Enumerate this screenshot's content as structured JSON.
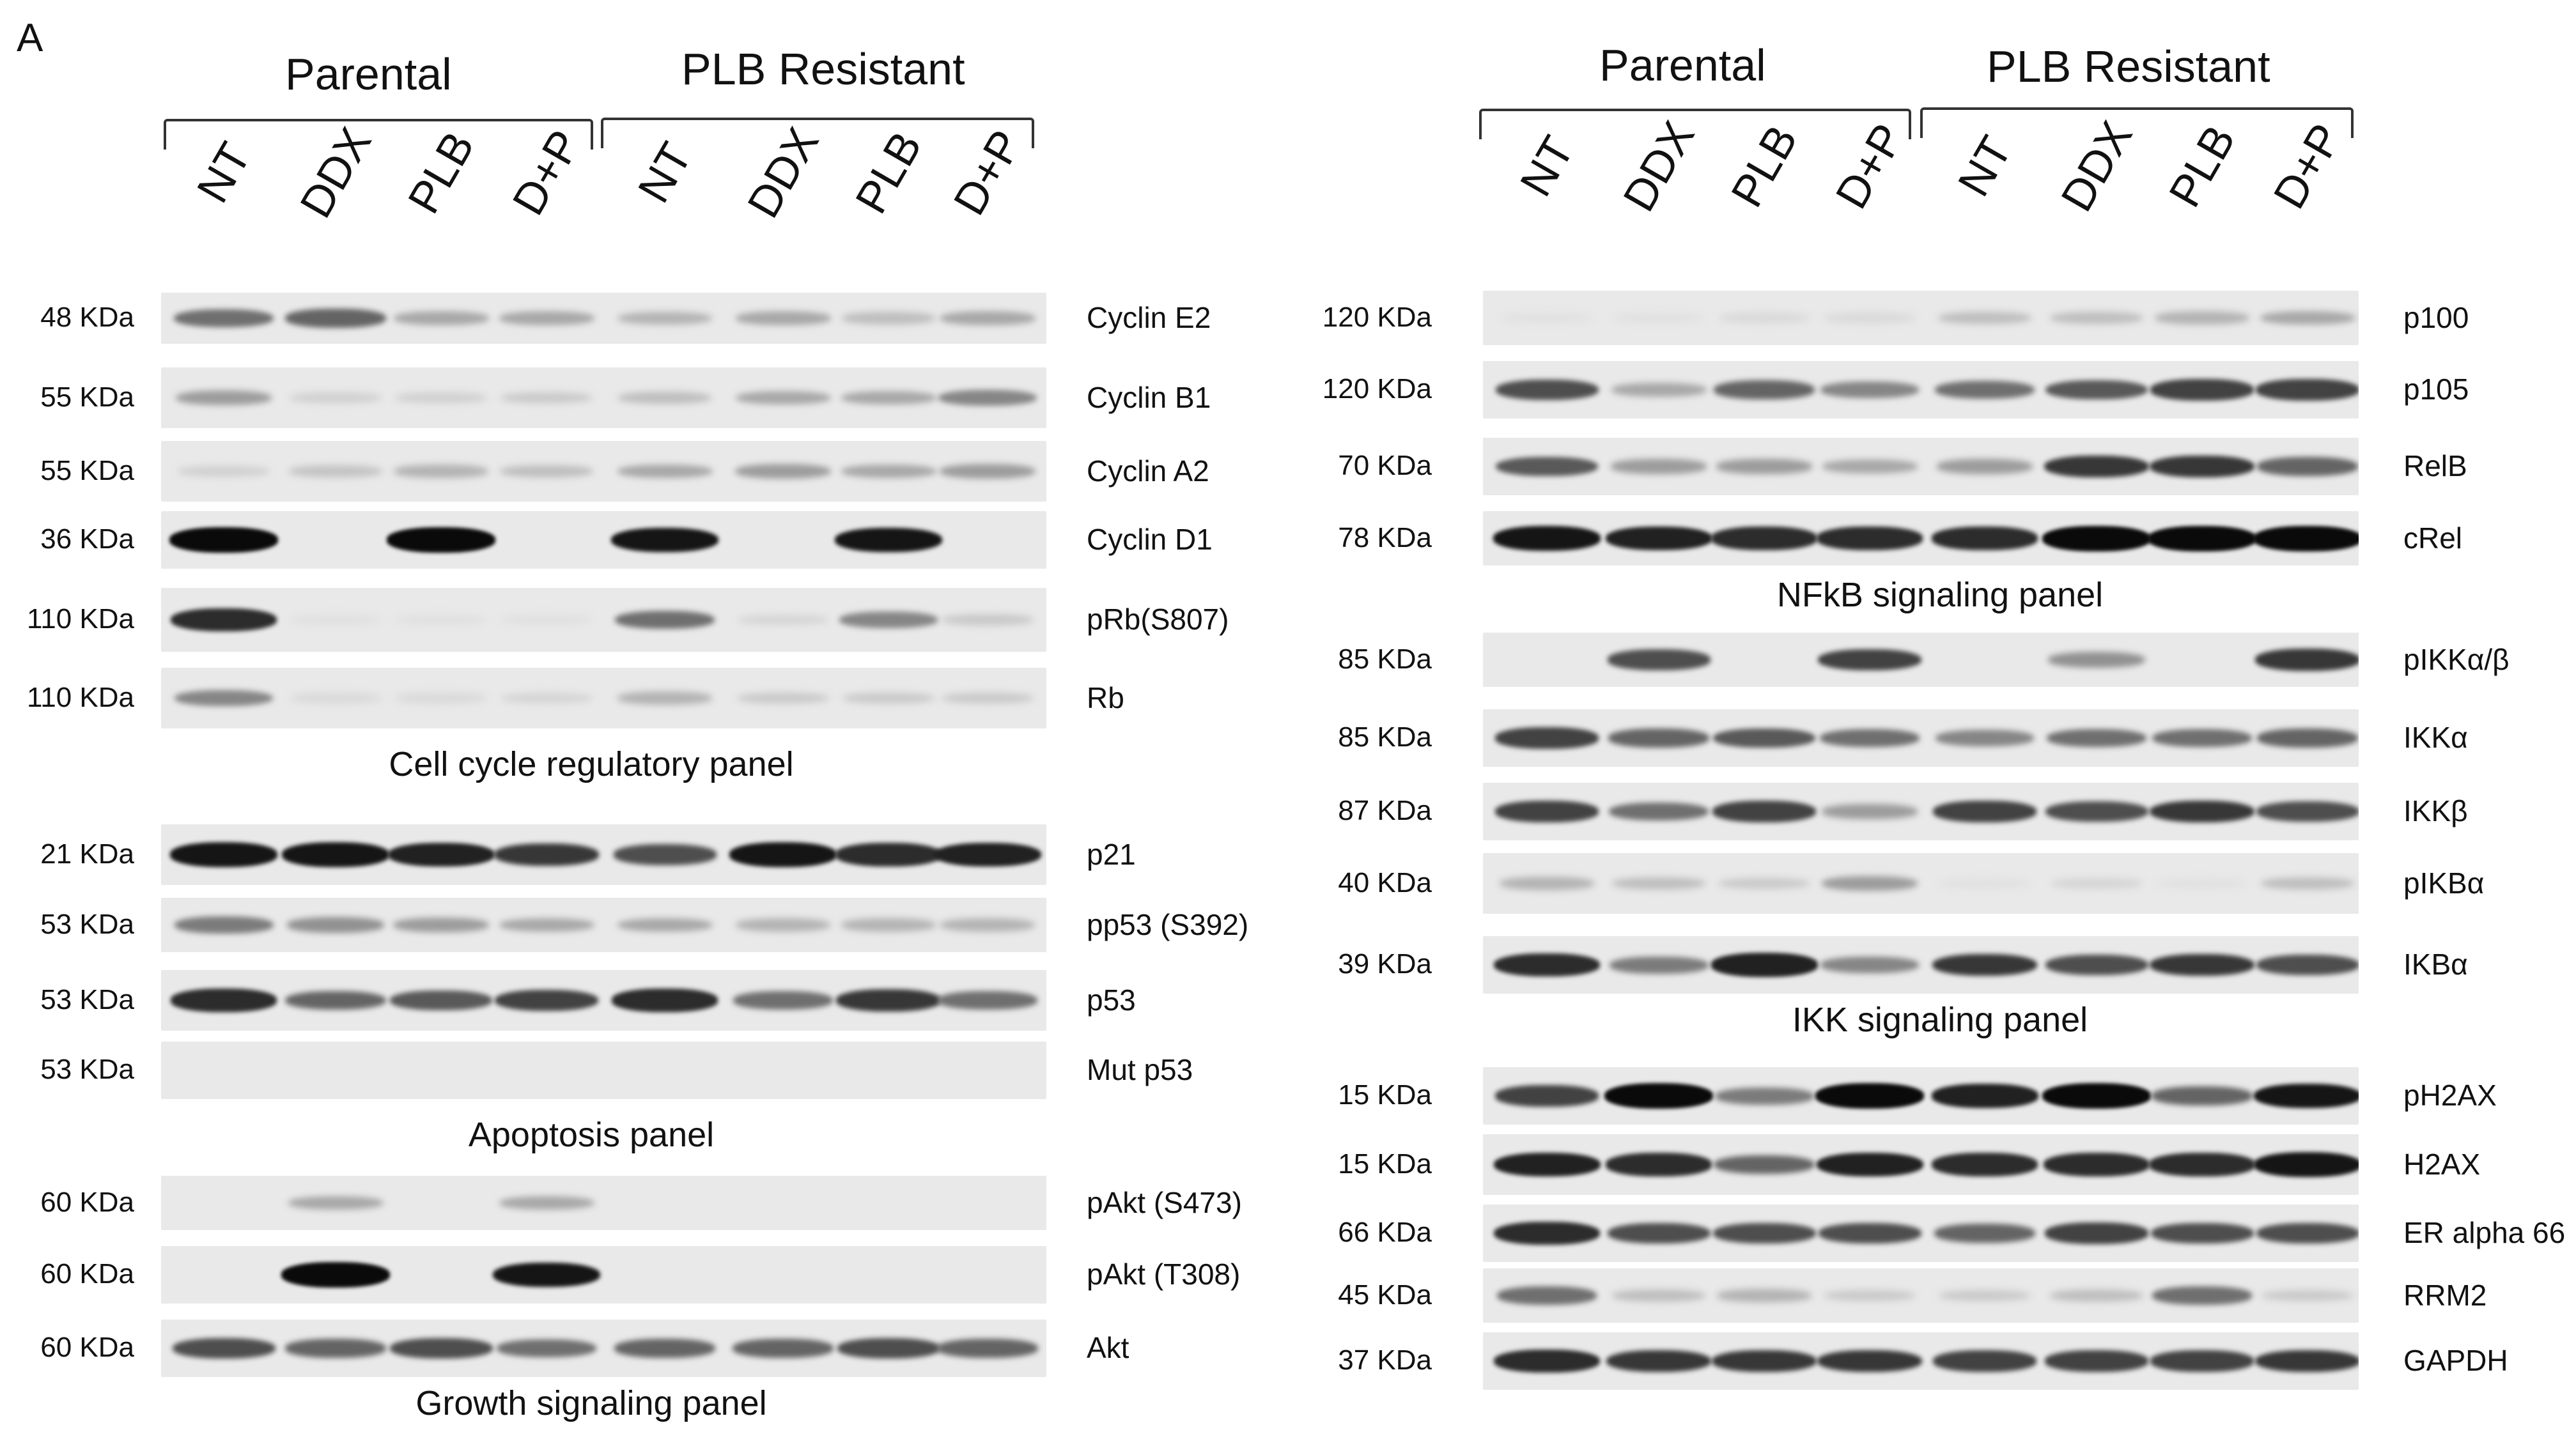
{
  "panel_letter": "A",
  "left": {
    "groups": [
      "Parental",
      "PLB Resistant"
    ],
    "lanes": [
      "NT",
      "DDX",
      "PLB",
      "D+P",
      "NT",
      "DDX",
      "PLB",
      "D+P"
    ],
    "panels": [
      {
        "title": "Cell cycle regulatory panel",
        "rows": [
          {
            "kda": "48 KDa",
            "protein": "Cyclin E2",
            "bands": [
              0.55,
              0.6,
              0.3,
              0.3,
              0.25,
              0.3,
              0.2,
              0.3
            ]
          },
          {
            "kda": "55 KDa",
            "protein": "Cyclin B1",
            "bands": [
              0.35,
              0.12,
              0.12,
              0.15,
              0.2,
              0.3,
              0.3,
              0.45
            ]
          },
          {
            "kda": "55 KDa",
            "protein": "Cyclin A2",
            "bands": [
              0.12,
              0.18,
              0.25,
              0.2,
              0.3,
              0.35,
              0.3,
              0.35
            ]
          },
          {
            "kda": "36 KDa",
            "protein": "Cyclin D1",
            "bands": [
              1,
              0,
              1,
              0,
              0.95,
              0,
              0.95,
              0
            ]
          },
          {
            "kda": "110 KDa",
            "protein": "pRb(S807)",
            "bands": [
              0.85,
              0.05,
              0.05,
              0.05,
              0.55,
              0.1,
              0.45,
              0.15
            ]
          },
          {
            "kda": "110 KDa",
            "protein": "Rb",
            "bands": [
              0.45,
              0.08,
              0.08,
              0.1,
              0.25,
              0.15,
              0.15,
              0.15
            ]
          }
        ]
      },
      {
        "title": "Apoptosis panel",
        "rows": [
          {
            "kda": "21 KDa",
            "protein": "p21",
            "bands": [
              0.95,
              0.95,
              0.9,
              0.8,
              0.7,
              0.95,
              0.85,
              0.9
            ]
          },
          {
            "kda": "53 KDa",
            "protein": "pp53 (S392)",
            "bands": [
              0.5,
              0.4,
              0.35,
              0.3,
              0.3,
              0.25,
              0.25,
              0.25
            ]
          },
          {
            "kda": "53 KDa",
            "protein": "p53",
            "bands": [
              0.85,
              0.6,
              0.65,
              0.75,
              0.85,
              0.55,
              0.8,
              0.55
            ]
          },
          {
            "kda": "53 KDa",
            "protein": "Mut p53",
            "bands": [
              0,
              0,
              0,
              0,
              0,
              0,
              0,
              0
            ]
          }
        ]
      },
      {
        "title": "Growth signaling panel",
        "rows": [
          {
            "kda": "60 KDa",
            "protein": "pAkt (S473)",
            "bands": [
              0,
              0.3,
              0,
              0.3,
              0,
              0,
              0,
              0
            ]
          },
          {
            "kda": "60 KDa",
            "protein": "pAkt (T308)",
            "bands": [
              0,
              1,
              0,
              0.95,
              0,
              0,
              0,
              0
            ]
          },
          {
            "kda": "60 KDa",
            "protein": "Akt",
            "bands": [
              0.7,
              0.6,
              0.7,
              0.55,
              0.6,
              0.6,
              0.7,
              0.6
            ]
          }
        ]
      }
    ]
  },
  "right": {
    "groups": [
      "Parental",
      "PLB Resistant"
    ],
    "lanes": [
      "NT",
      "DDX",
      "PLB",
      "D+P",
      "NT",
      "DDX",
      "PLB",
      "D+P"
    ],
    "panels": [
      {
        "title": "NFkB signaling panel",
        "rows": [
          {
            "kda": "120 KDa",
            "protein": "p100",
            "bands": [
              0.05,
              0.05,
              0.08,
              0.08,
              0.2,
              0.2,
              0.25,
              0.3
            ]
          },
          {
            "kda": "120 KDa",
            "protein": "p105",
            "bands": [
              0.7,
              0.3,
              0.6,
              0.45,
              0.55,
              0.65,
              0.75,
              0.75
            ]
          },
          {
            "kda": "70 KDa",
            "protein": "RelB",
            "bands": [
              0.65,
              0.35,
              0.35,
              0.3,
              0.35,
              0.8,
              0.8,
              0.6
            ]
          },
          {
            "kda": "78 KDa",
            "protein": "cRel",
            "bands": [
              0.95,
              0.9,
              0.85,
              0.85,
              0.85,
              1,
              1,
              1
            ]
          }
        ]
      },
      {
        "title": "IKK signaling panel",
        "rows": [
          {
            "kda": "85 KDa",
            "protein": "pIKKα/β",
            "bands": [
              0,
              0.7,
              0,
              0.75,
              0,
              0.4,
              0,
              0.8
            ]
          },
          {
            "kda": "85 KDa",
            "protein": "IKKα",
            "bands": [
              0.75,
              0.6,
              0.65,
              0.55,
              0.45,
              0.55,
              0.55,
              0.6
            ]
          },
          {
            "kda": "87 KDa",
            "protein": "IKKβ",
            "bands": [
              0.75,
              0.55,
              0.75,
              0.35,
              0.75,
              0.7,
              0.8,
              0.7
            ]
          },
          {
            "kda": "40 KDa",
            "protein": "pIKBα",
            "bands": [
              0.25,
              0.2,
              0.15,
              0.35,
              0.05,
              0.1,
              0.05,
              0.2
            ]
          },
          {
            "kda": "39 KDa",
            "protein": "IKBα",
            "bands": [
              0.85,
              0.5,
              0.9,
              0.45,
              0.8,
              0.7,
              0.8,
              0.7
            ]
          }
        ]
      },
      {
        "title": "",
        "rows": [
          {
            "kda": "15 KDa",
            "protein": "pH2AX",
            "bands": [
              0.75,
              1,
              0.5,
              1,
              0.9,
              1,
              0.6,
              0.95
            ]
          },
          {
            "kda": "15 KDa",
            "protein": "H2AX",
            "bands": [
              0.9,
              0.85,
              0.6,
              0.9,
              0.85,
              0.85,
              0.85,
              0.95
            ]
          },
          {
            "kda": "66 KDa",
            "protein": "ER alpha 66",
            "bands": [
              0.85,
              0.7,
              0.7,
              0.7,
              0.6,
              0.75,
              0.7,
              0.7
            ]
          },
          {
            "kda": "45 KDa",
            "protein": "RRM2",
            "bands": [
              0.55,
              0.2,
              0.25,
              0.15,
              0.15,
              0.2,
              0.55,
              0.15
            ]
          },
          {
            "kda": "37 KDa",
            "protein": "GAPDH",
            "bands": [
              0.85,
              0.8,
              0.8,
              0.8,
              0.75,
              0.75,
              0.75,
              0.8
            ]
          }
        ]
      }
    ]
  }
}
